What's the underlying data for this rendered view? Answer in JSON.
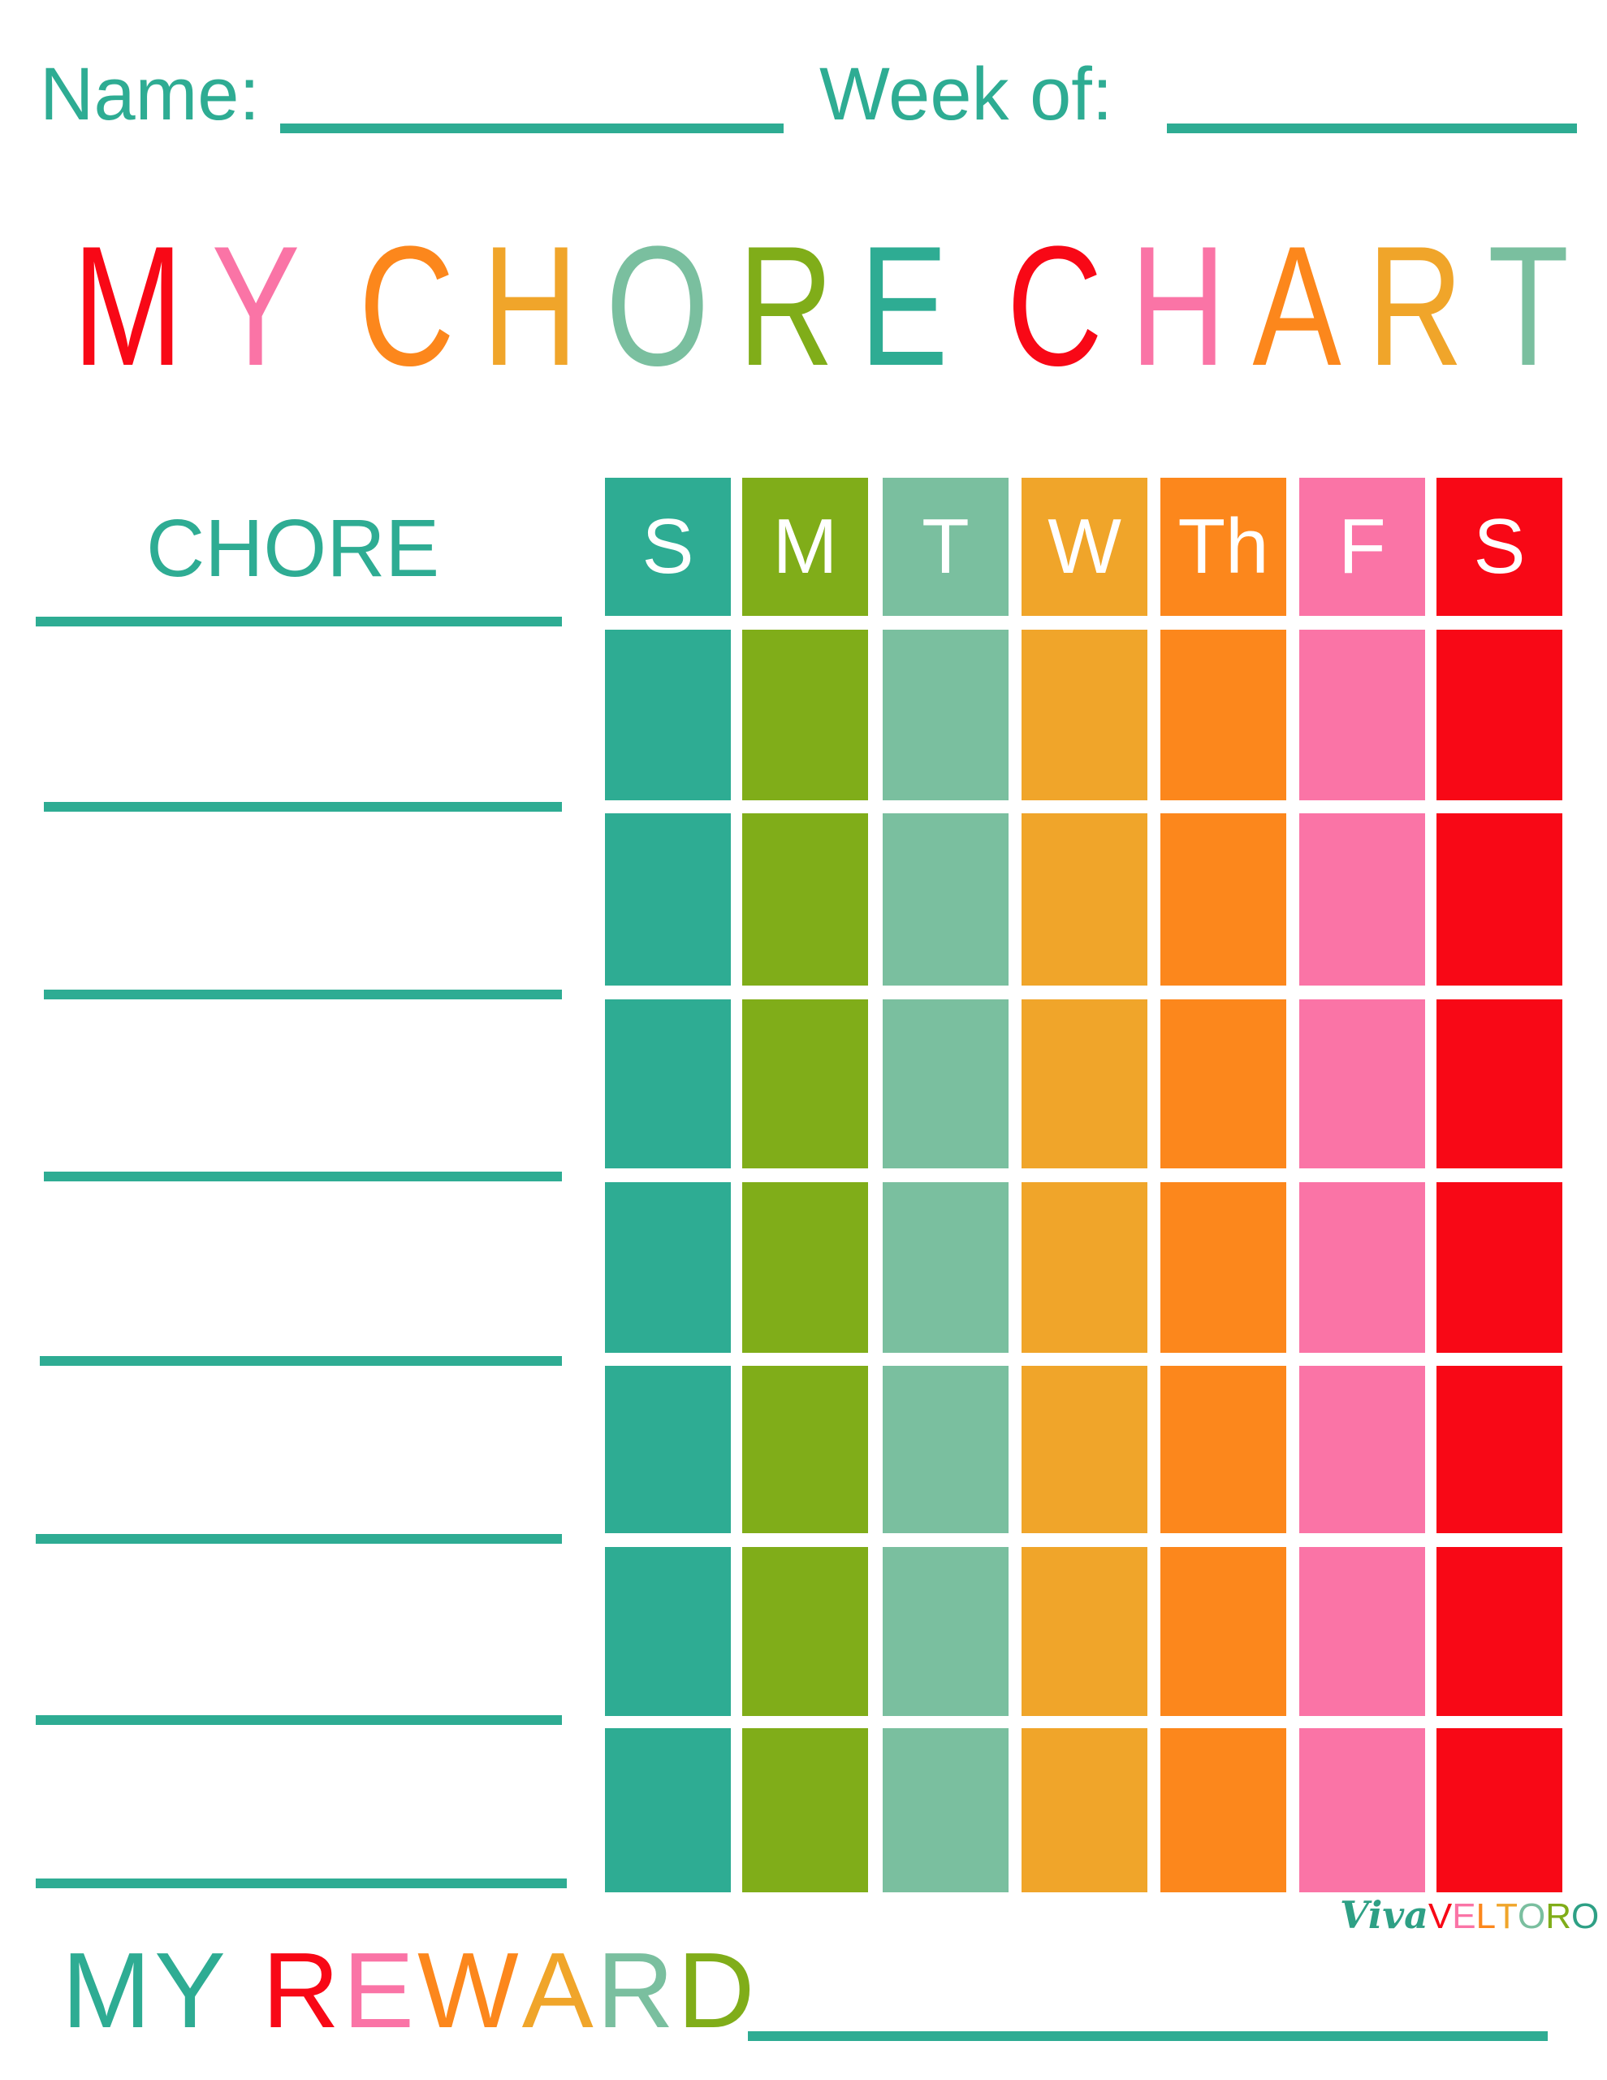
{
  "header": {
    "name_label": "Name:",
    "week_label": "Week of:"
  },
  "title": {
    "text": "MY CHORE CHART",
    "letters": [
      {
        "ch": "M",
        "color": "#F80816"
      },
      {
        "ch": "Y",
        "color": "#FA74A6"
      },
      {
        "ch": " ",
        "color": ""
      },
      {
        "ch": "C",
        "color": "#FC871C"
      },
      {
        "ch": "H",
        "color": "#F0A52A"
      },
      {
        "ch": "O",
        "color": "#7ABF9F"
      },
      {
        "ch": "R",
        "color": "#80AD19"
      },
      {
        "ch": "E",
        "color": "#2EAC93"
      },
      {
        "ch": " ",
        "color": ""
      },
      {
        "ch": "C",
        "color": "#F80816"
      },
      {
        "ch": "H",
        "color": "#FA74A6"
      },
      {
        "ch": "A",
        "color": "#FC871C"
      },
      {
        "ch": "R",
        "color": "#F0A52A"
      },
      {
        "ch": "T",
        "color": "#7ABF9F"
      }
    ]
  },
  "chore_header": "CHORE",
  "days": [
    {
      "label": "S",
      "color": "#2EAC93"
    },
    {
      "label": "M",
      "color": "#80AD19"
    },
    {
      "label": "T",
      "color": "#7ABF9F"
    },
    {
      "label": "W",
      "color": "#F0A52A"
    },
    {
      "label": "Th",
      "color": "#FC871C"
    },
    {
      "label": "F",
      "color": "#FA74A6"
    },
    {
      "label": "S",
      "color": "#F80816"
    }
  ],
  "chore_rows": 7,
  "reward": {
    "text": "MY REWARD",
    "letters": [
      {
        "ch": "M",
        "color": "#2EAC93"
      },
      {
        "ch": "Y",
        "color": "#2EAC93"
      },
      {
        "ch": " ",
        "color": ""
      },
      {
        "ch": "R",
        "color": "#F80816"
      },
      {
        "ch": "E",
        "color": "#FA74A6"
      },
      {
        "ch": "W",
        "color": "#FC871C"
      },
      {
        "ch": "A",
        "color": "#F0A52A"
      },
      {
        "ch": "R",
        "color": "#7ABF9F"
      },
      {
        "ch": "D",
        "color": "#80AD19"
      }
    ]
  },
  "logo": {
    "viva": "Viva",
    "veltoro_letters": [
      {
        "ch": "V",
        "color": "#F80816"
      },
      {
        "ch": "E",
        "color": "#FA74A6"
      },
      {
        "ch": "L",
        "color": "#FC871C"
      },
      {
        "ch": "T",
        "color": "#F0A52A"
      },
      {
        "ch": "O",
        "color": "#7ABF9F"
      },
      {
        "ch": "R",
        "color": "#80AD19"
      },
      {
        "ch": "O",
        "color": "#2EA085"
      }
    ]
  },
  "accent_color": "#2EAC93"
}
